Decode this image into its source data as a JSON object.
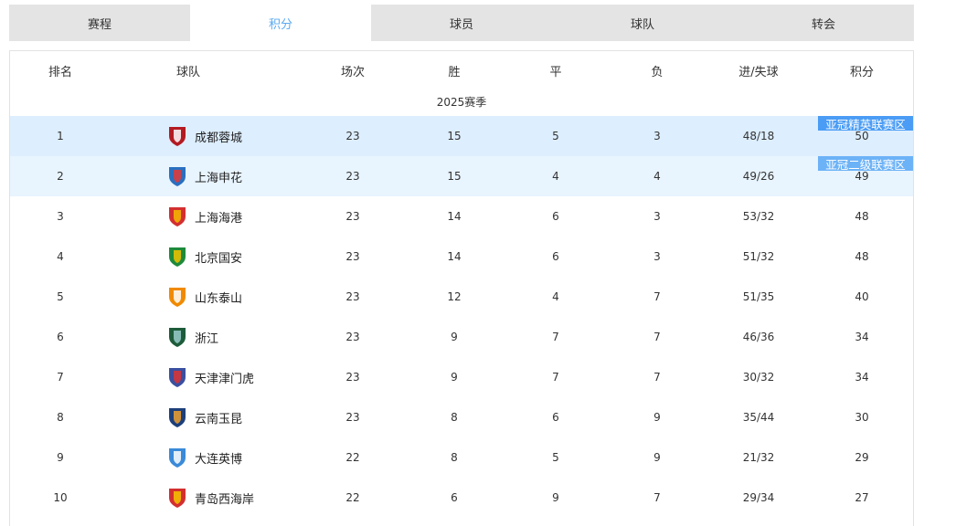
{
  "tabs": [
    {
      "label": "赛程"
    },
    {
      "label": "积分",
      "active": true
    },
    {
      "label": "球员"
    },
    {
      "label": "球队"
    },
    {
      "label": "转会"
    }
  ],
  "headers": [
    "排名",
    "球队",
    "场次",
    "胜",
    "平",
    "负",
    "进/失球",
    "积分"
  ],
  "season": "2025赛季",
  "colors": {
    "accent": "#5aa9f0",
    "row1": "#ddeefe",
    "row2": "#e8f4fe",
    "badge_elite": "#4a9cf5",
    "badge_two": "#6cb2f7",
    "tab_bg": "#e4e4e4"
  },
  "rows": [
    {
      "rank": "1",
      "team": "成都蓉城",
      "played": "23",
      "won": "15",
      "drawn": "5",
      "lost": "3",
      "goals": "48/18",
      "points": "50",
      "badge": "亚冠精英联赛区",
      "logo": "chengdu-rongcheng-logo",
      "c1": "#b31b22",
      "c2": "#ffffff"
    },
    {
      "rank": "2",
      "team": "上海申花",
      "played": "23",
      "won": "15",
      "drawn": "4",
      "lost": "4",
      "goals": "49/26",
      "points": "49",
      "badge": "亚冠二级联赛区",
      "logo": "shanghai-shenhua-logo",
      "c1": "#2a6fc0",
      "c2": "#e53935"
    },
    {
      "rank": "3",
      "team": "上海海港",
      "played": "23",
      "won": "14",
      "drawn": "6",
      "lost": "3",
      "goals": "53/32",
      "points": "48",
      "logo": "shanghai-port-logo",
      "c1": "#d32f2f",
      "c2": "#f5b800"
    },
    {
      "rank": "4",
      "team": "北京国安",
      "played": "23",
      "won": "14",
      "drawn": "6",
      "lost": "3",
      "goals": "51/32",
      "points": "48",
      "logo": "beijing-guoan-logo",
      "c1": "#1e8a3a",
      "c2": "#f2c200"
    },
    {
      "rank": "5",
      "team": "山东泰山",
      "played": "23",
      "won": "12",
      "drawn": "4",
      "lost": "7",
      "goals": "51/35",
      "points": "40",
      "logo": "shandong-taishan-logo",
      "c1": "#f08a00",
      "c2": "#ffffff"
    },
    {
      "rank": "6",
      "team": "浙江",
      "played": "23",
      "won": "9",
      "drawn": "7",
      "lost": "7",
      "goals": "46/36",
      "points": "34",
      "logo": "zhejiang-logo",
      "c1": "#1d5b3a",
      "c2": "#9cc"
    },
    {
      "rank": "7",
      "team": "天津津门虎",
      "played": "23",
      "won": "9",
      "drawn": "7",
      "lost": "7",
      "goals": "30/32",
      "points": "34",
      "logo": "tianjin-jinmen-tiger-logo",
      "c1": "#3a4fa0",
      "c2": "#d33"
    },
    {
      "rank": "8",
      "team": "云南玉昆",
      "played": "23",
      "won": "8",
      "drawn": "6",
      "lost": "9",
      "goals": "35/44",
      "points": "30",
      "logo": "yunnan-yukun-logo",
      "c1": "#1d3f7a",
      "c2": "#f0a030"
    },
    {
      "rank": "9",
      "team": "大连英博",
      "played": "22",
      "won": "8",
      "drawn": "5",
      "lost": "9",
      "goals": "21/32",
      "points": "29",
      "logo": "dalian-yingbo-logo",
      "c1": "#3a8ad8",
      "c2": "#ffffff"
    },
    {
      "rank": "10",
      "team": "青岛西海岸",
      "played": "22",
      "won": "6",
      "drawn": "9",
      "lost": "7",
      "goals": "29/34",
      "points": "27",
      "logo": "qingdao-west-coast-logo",
      "c1": "#d32f2f",
      "c2": "#f5c400"
    }
  ]
}
